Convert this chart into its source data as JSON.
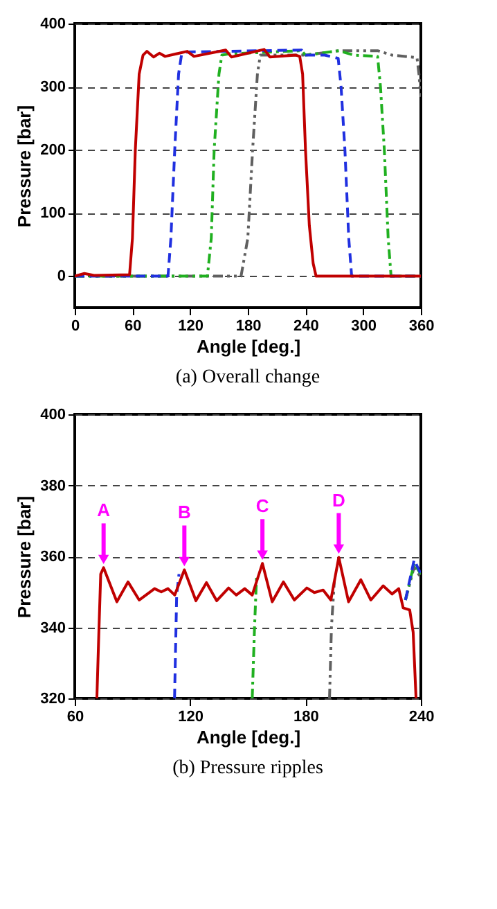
{
  "chart_data": [
    {
      "type": "line",
      "title": "(a)  Overall change",
      "xlabel": "Angle [deg.]",
      "ylabel": "Pressure [bar]",
      "xlim": [
        0,
        360
      ],
      "ylim": [
        -50,
        400
      ],
      "xticks": [
        0,
        60,
        120,
        180,
        240,
        300,
        360
      ],
      "yticks": [
        0,
        100,
        200,
        300,
        400
      ],
      "grid": "y",
      "series": [
        {
          "color": "#606060",
          "line_style": "dashdotdot",
          "x": [
            0,
            100,
            173,
            180,
            185,
            190,
            193,
            200,
            240,
            275,
            315,
            330,
            356,
            358,
            360
          ],
          "values": [
            0,
            0,
            0,
            60,
            200,
            320,
            350,
            350,
            350,
            357,
            357,
            350,
            346,
            320,
            284
          ]
        },
        {
          "color": "#20b020",
          "line_style": "dashdot",
          "x": [
            0,
            60,
            138,
            142,
            145,
            150,
            153,
            160,
            236,
            240,
            275,
            290,
            315,
            318,
            322,
            326,
            329,
            360
          ],
          "values": [
            0,
            0,
            0,
            60,
            200,
            320,
            350,
            352,
            357,
            350,
            357,
            350,
            348,
            300,
            200,
            60,
            0,
            0
          ]
        },
        {
          "color": "#2030e0",
          "line_style": "dashed",
          "x": [
            0,
            60,
            97,
            100,
            104,
            108,
            111,
            117,
            236,
            240,
            260,
            274,
            277,
            281,
            285,
            288,
            360
          ],
          "values": [
            0,
            0,
            0,
            60,
            200,
            320,
            350,
            355,
            358,
            350,
            350,
            345,
            300,
            200,
            60,
            0,
            0
          ]
        },
        {
          "color": "#c00000",
          "line_style": "solid",
          "x": [
            0,
            10,
            20,
            57,
            60,
            63,
            67,
            71,
            75,
            82,
            88,
            94,
            117,
            124,
            157,
            163,
            197,
            203,
            230,
            234,
            237,
            240,
            244,
            248,
            251,
            360
          ],
          "values": [
            0,
            4,
            1,
            2,
            60,
            200,
            320,
            350,
            356,
            347,
            353,
            348,
            356,
            348,
            358,
            347,
            359,
            347,
            350,
            348,
            320,
            200,
            80,
            20,
            0,
            0
          ]
        }
      ]
    },
    {
      "type": "line",
      "title": "(b)  Pressure ripples",
      "xlabel": "Angle [deg.]",
      "ylabel": "Pressure [bar]",
      "xlim": [
        60,
        240
      ],
      "ylim": [
        320,
        400
      ],
      "xticks": [
        60,
        120,
        180,
        240
      ],
      "yticks": [
        320,
        340,
        360,
        380,
        400
      ],
      "grid": "y",
      "annotations": [
        {
          "text": "A",
          "x": 75,
          "y": 356.8
        },
        {
          "text": "B",
          "x": 117,
          "y": 356.2
        },
        {
          "text": "C",
          "x": 157.6,
          "y": 358
        },
        {
          "text": "D",
          "x": 197.3,
          "y": 359.7
        }
      ],
      "series": [
        {
          "color": "#606060",
          "line_style": "dashdotdot",
          "x": [
            192.5,
            193.5,
            195,
            215,
            232,
            236.5,
            240
          ],
          "values": [
            320,
            340,
            353,
            null,
            347.7,
            357,
            354
          ]
        },
        {
          "color": "#20b020",
          "line_style": "dashdot",
          "x": [
            152.3,
            153.5,
            154.6,
            170,
            232,
            236.5,
            240
          ],
          "values": [
            320,
            340,
            355,
            null,
            347.7,
            358,
            355
          ]
        },
        {
          "color": "#2030e0",
          "line_style": "dashed",
          "x": [
            111.9,
            113,
            114.2,
            130,
            232,
            236.5,
            240
          ],
          "values": [
            320,
            349,
            355,
            null,
            347.7,
            359,
            355
          ]
        },
        {
          "color": "#c00000",
          "line_style": "solid",
          "x": [
            71.5,
            72.5,
            73.5,
            75,
            81.9,
            87.7,
            93.5,
            101.5,
            105,
            108.5,
            112,
            117,
            123,
            128.5,
            133.8,
            140,
            144,
            148.4,
            152.3,
            157.6,
            162.7,
            168.5,
            174.2,
            180.7,
            184.6,
            189.2,
            193.2,
            197.3,
            202.4,
            208.8,
            214,
            220.4,
            225,
            228.5,
            230.8,
            234.2,
            236,
            237.5
          ],
          "values": [
            320,
            338,
            355,
            356.8,
            347.2,
            352.8,
            347.7,
            350.9,
            350,
            350.9,
            349.1,
            356.2,
            347.5,
            352.6,
            347.5,
            351.1,
            349.1,
            350.9,
            349.1,
            358,
            347.2,
            352.8,
            347.7,
            351.1,
            349.8,
            350.5,
            347.7,
            359.7,
            347.2,
            353.4,
            347.7,
            351.7,
            349.4,
            350.9,
            345.5,
            344.9,
            338.6,
            320
          ]
        }
      ]
    }
  ]
}
